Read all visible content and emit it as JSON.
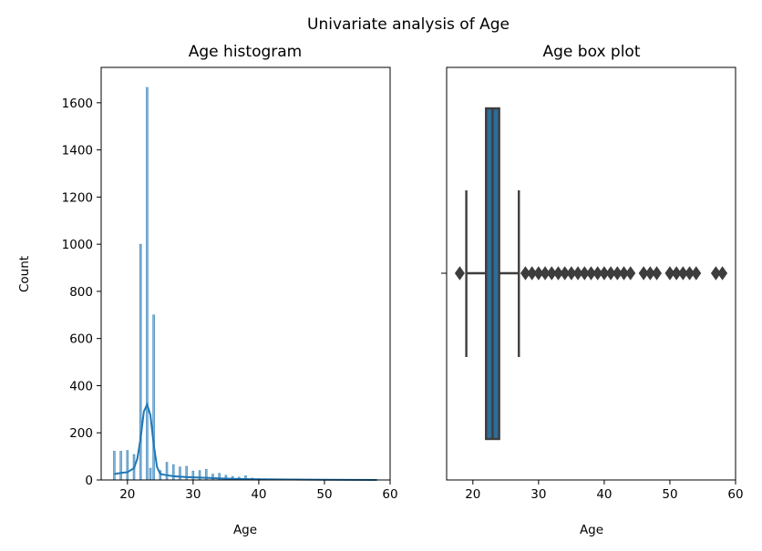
{
  "figure": {
    "title": "Univariate analysis of Age"
  },
  "chart_data": [
    {
      "type": "histogram",
      "title": "Age histogram",
      "xlabel": "Age",
      "ylabel": "Count",
      "xlim": [
        16,
        60
      ],
      "ylim": [
        0,
        1750
      ],
      "xticks": [
        20,
        30,
        40,
        50,
        60
      ],
      "yticks": [
        0,
        200,
        400,
        600,
        800,
        1000,
        1200,
        1400,
        1600
      ],
      "grid": false,
      "color": "#1f77b4",
      "bins": [
        {
          "x": 18,
          "count": 122
        },
        {
          "x": 19,
          "count": 122
        },
        {
          "x": 20,
          "count": 125
        },
        {
          "x": 21,
          "count": 108
        },
        {
          "x": 22,
          "count": 1000
        },
        {
          "x": 23,
          "count": 1665
        },
        {
          "x": 23.5,
          "count": 50
        },
        {
          "x": 24,
          "count": 700
        },
        {
          "x": 25,
          "count": 40
        },
        {
          "x": 26,
          "count": 75
        },
        {
          "x": 27,
          "count": 65
        },
        {
          "x": 28,
          "count": 55
        },
        {
          "x": 29,
          "count": 58
        },
        {
          "x": 30,
          "count": 38
        },
        {
          "x": 31,
          "count": 40
        },
        {
          "x": 32,
          "count": 45
        },
        {
          "x": 33,
          "count": 25
        },
        {
          "x": 34,
          "count": 28
        },
        {
          "x": 35,
          "count": 20
        },
        {
          "x": 36,
          "count": 15
        },
        {
          "x": 37,
          "count": 12
        },
        {
          "x": 38,
          "count": 18
        },
        {
          "x": 39,
          "count": 8
        },
        {
          "x": 40,
          "count": 6
        },
        {
          "x": 41,
          "count": 5
        },
        {
          "x": 42,
          "count": 5
        },
        {
          "x": 43,
          "count": 4
        },
        {
          "x": 44,
          "count": 3
        },
        {
          "x": 46,
          "count": 3
        },
        {
          "x": 47,
          "count": 2
        },
        {
          "x": 48,
          "count": 2
        },
        {
          "x": 50,
          "count": 2
        },
        {
          "x": 51,
          "count": 1
        },
        {
          "x": 52,
          "count": 1
        },
        {
          "x": 53,
          "count": 1
        },
        {
          "x": 54,
          "count": 1
        },
        {
          "x": 57,
          "count": 1
        },
        {
          "x": 58,
          "count": 1
        }
      ],
      "kde": [
        [
          18,
          25
        ],
        [
          19,
          30
        ],
        [
          20,
          33
        ],
        [
          21,
          50
        ],
        [
          21.5,
          90
        ],
        [
          22,
          175
        ],
        [
          22.5,
          290
        ],
        [
          23,
          320
        ],
        [
          23.5,
          275
        ],
        [
          24,
          150
        ],
        [
          24.5,
          55
        ],
        [
          25,
          25
        ],
        [
          26,
          20
        ],
        [
          27,
          16
        ],
        [
          28,
          14
        ],
        [
          29,
          12
        ],
        [
          30,
          11
        ],
        [
          32,
          9
        ],
        [
          34,
          7
        ],
        [
          36,
          5
        ],
        [
          40,
          3
        ],
        [
          45,
          2
        ],
        [
          50,
          1
        ],
        [
          58,
          0
        ]
      ]
    },
    {
      "type": "box",
      "title": "Age box plot",
      "xlabel": "Age",
      "xlim": [
        16,
        60
      ],
      "xticks": [
        20,
        30,
        40,
        50,
        60
      ],
      "color": "#2f6d98",
      "q1": 22,
      "median": 23,
      "q3": 24,
      "whisker_low": 19,
      "whisker_high": 27,
      "outliers": [
        18,
        28,
        29,
        30,
        31,
        32,
        33,
        34,
        35,
        36,
        37,
        38,
        39,
        40,
        41,
        42,
        43,
        44,
        46,
        47,
        48,
        50,
        51,
        52,
        53,
        54,
        57,
        58
      ]
    }
  ]
}
